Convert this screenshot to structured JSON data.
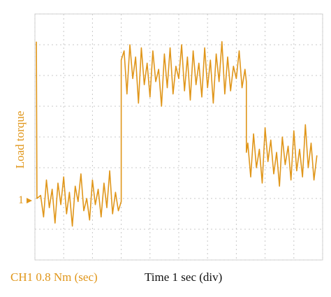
{
  "chart_data": {
    "type": "line",
    "y_label": "Load torque",
    "channel_marker": {
      "value": 1.93,
      "label": "1"
    },
    "channel_label": "CH1 0.8 Nm (sec)",
    "x_label": "Time 1 sec (div)",
    "xlim": [
      0,
      10
    ],
    "ylim": [
      0,
      8
    ],
    "xticks": [
      0,
      1,
      2,
      3,
      4,
      5,
      6,
      7,
      8,
      9,
      10
    ],
    "yticks": [
      0,
      1,
      2,
      3,
      4,
      5,
      6,
      7,
      8
    ],
    "grid": true,
    "series": [
      {
        "name": "CH1",
        "color": "#e0961a",
        "x": [
          0.05,
          0.07,
          0.2,
          0.3,
          0.4,
          0.5,
          0.6,
          0.7,
          0.8,
          0.9,
          1.0,
          1.1,
          1.2,
          1.3,
          1.4,
          1.5,
          1.6,
          1.7,
          1.8,
          1.9,
          2.0,
          2.1,
          2.2,
          2.3,
          2.4,
          2.5,
          2.6,
          2.7,
          2.8,
          2.9,
          3.0,
          3.0,
          3.1,
          3.2,
          3.3,
          3.4,
          3.5,
          3.6,
          3.7,
          3.8,
          3.9,
          4.0,
          4.1,
          4.2,
          4.3,
          4.4,
          4.5,
          4.6,
          4.7,
          4.8,
          4.9,
          5.0,
          5.1,
          5.2,
          5.3,
          5.4,
          5.5,
          5.6,
          5.7,
          5.8,
          5.9,
          6.0,
          6.1,
          6.2,
          6.3,
          6.4,
          6.5,
          6.6,
          6.7,
          6.8,
          6.9,
          7.0,
          7.1,
          7.2,
          7.3,
          7.35,
          7.35,
          7.4,
          7.5,
          7.6,
          7.7,
          7.8,
          7.9,
          8.0,
          8.1,
          8.2,
          8.3,
          8.4,
          8.5,
          8.6,
          8.7,
          8.8,
          8.9,
          9.0,
          9.1,
          9.2,
          9.3,
          9.4,
          9.5,
          9.6,
          9.7,
          9.8
        ],
        "values": [
          7.1,
          2.0,
          2.1,
          1.4,
          2.6,
          1.7,
          2.3,
          1.2,
          2.5,
          1.8,
          2.7,
          1.5,
          2.2,
          1.1,
          2.4,
          1.9,
          2.8,
          1.6,
          2.0,
          1.3,
          2.6,
          1.8,
          2.3,
          1.4,
          2.5,
          1.7,
          2.9,
          1.5,
          2.2,
          1.6,
          1.9,
          6.5,
          6.8,
          5.4,
          7.0,
          5.9,
          6.6,
          5.1,
          6.9,
          5.7,
          6.4,
          5.3,
          6.8,
          5.8,
          6.2,
          5.0,
          6.7,
          5.6,
          6.9,
          5.4,
          6.3,
          5.9,
          7.0,
          5.5,
          6.6,
          5.2,
          6.8,
          5.7,
          6.4,
          5.3,
          6.9,
          5.6,
          6.5,
          5.1,
          6.7,
          5.8,
          7.1,
          5.4,
          6.6,
          5.5,
          6.3,
          5.9,
          6.8,
          5.6,
          6.2,
          5.8,
          3.5,
          3.8,
          2.7,
          4.1,
          3.0,
          3.6,
          2.5,
          4.3,
          3.2,
          3.9,
          2.8,
          3.5,
          2.4,
          4.0,
          3.1,
          3.7,
          2.6,
          4.2,
          2.9,
          3.6,
          2.7,
          4.4,
          3.0,
          3.8,
          2.6,
          3.4
        ]
      }
    ]
  }
}
